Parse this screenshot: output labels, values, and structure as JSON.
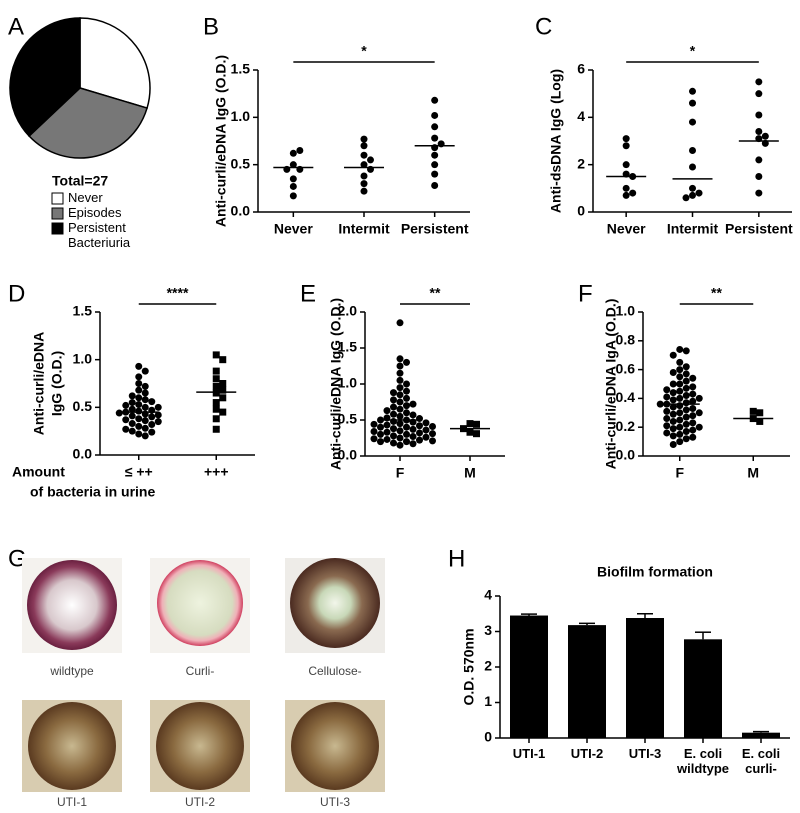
{
  "chart_data": [
    {
      "type": "pie",
      "panel": "A",
      "title": "Total=27",
      "categories": [
        "Never",
        "Episodes",
        "Persistent Bacteriuria"
      ],
      "values": [
        8,
        9,
        10
      ],
      "colors": [
        "#ffffff",
        "#777777",
        "#000000"
      ]
    },
    {
      "type": "strip",
      "panel": "B",
      "ylabel": "Anti-curli/eDNA IgG (O.D.)",
      "categories": [
        "Never",
        "Intermit",
        "Persistent"
      ],
      "values": [
        [
          0.62,
          0.65,
          0.5,
          0.45,
          0.45,
          0.35,
          0.27,
          0.17
        ],
        [
          0.77,
          0.7,
          0.6,
          0.55,
          0.5,
          0.45,
          0.38,
          0.3,
          0.22
        ],
        [
          1.18,
          1.02,
          0.9,
          0.78,
          0.72,
          0.68,
          0.6,
          0.5,
          0.4,
          0.28
        ]
      ],
      "medians": [
        0.47,
        0.47,
        0.7
      ],
      "markers": [
        "circle",
        "circle",
        "circle"
      ],
      "significance": "*",
      "ylim": [
        0,
        1.5
      ],
      "yticks": [
        {
          "value": 0,
          "label": "0.0"
        },
        0.5,
        {
          "value": 1,
          "label": "1.0"
        },
        1.5
      ]
    },
    {
      "type": "strip",
      "panel": "C",
      "ylabel": "Anti-dsDNA IgG (Log)",
      "categories": [
        "Never",
        "Intermit",
        "Persistent"
      ],
      "values": [
        [
          3.1,
          2.8,
          2.0,
          1.6,
          1.5,
          1.0,
          0.8,
          0.7
        ],
        [
          5.1,
          4.6,
          3.8,
          2.6,
          1.9,
          1.0,
          0.8,
          0.7,
          0.6
        ],
        [
          5.5,
          5.0,
          4.1,
          3.4,
          3.2,
          3.1,
          2.9,
          2.2,
          1.5,
          0.8
        ]
      ],
      "medians": [
        1.5,
        1.4,
        3.0
      ],
      "markers": [
        "circle",
        "circle",
        "circle"
      ],
      "significance": "*",
      "ylim": [
        0,
        6
      ],
      "yticks": [
        0,
        2,
        4,
        6
      ]
    },
    {
      "type": "strip",
      "panel": "D",
      "ylabel": [
        "Anti-curli/eDNA",
        "IgG (O.D.)"
      ],
      "xlabel": [
        "Amount",
        "of bacteria in urine"
      ],
      "categories": [
        "≤ ++",
        "+++"
      ],
      "values": [
        [
          0.93,
          0.88,
          0.82,
          0.75,
          0.72,
          0.68,
          0.65,
          0.62,
          0.6,
          0.58,
          0.56,
          0.55,
          0.53,
          0.52,
          0.5,
          0.5,
          0.48,
          0.47,
          0.46,
          0.45,
          0.44,
          0.43,
          0.42,
          0.41,
          0.4,
          0.38,
          0.37,
          0.36,
          0.35,
          0.33,
          0.32,
          0.3,
          0.28,
          0.27,
          0.25,
          0.24,
          0.22,
          0.2
        ],
        [
          1.05,
          1.0,
          0.88,
          0.8,
          0.75,
          0.72,
          0.68,
          0.65,
          0.6,
          0.55,
          0.48,
          0.45,
          0.38,
          0.27
        ]
      ],
      "medians": [
        0.45,
        0.66
      ],
      "markers": [
        "circle",
        "square"
      ],
      "significance": "****",
      "ylim": [
        0,
        1.5
      ],
      "yticks": [
        {
          "value": 0,
          "label": "0.0"
        },
        0.5,
        {
          "value": 1,
          "label": "1.0"
        },
        1.5
      ]
    },
    {
      "type": "strip",
      "panel": "E",
      "ylabel": "Anti-curli/eDNA IgG (O.D.)",
      "categories": [
        "F",
        "M"
      ],
      "values": [
        [
          1.85,
          1.35,
          1.3,
          1.25,
          1.15,
          1.05,
          1.0,
          0.95,
          0.9,
          0.88,
          0.85,
          0.8,
          0.78,
          0.75,
          0.72,
          0.7,
          0.68,
          0.65,
          0.63,
          0.6,
          0.58,
          0.57,
          0.55,
          0.53,
          0.52,
          0.5,
          0.5,
          0.48,
          0.47,
          0.46,
          0.45,
          0.44,
          0.43,
          0.42,
          0.41,
          0.4,
          0.4,
          0.38,
          0.37,
          0.36,
          0.35,
          0.34,
          0.33,
          0.32,
          0.31,
          0.3,
          0.3,
          0.28,
          0.27,
          0.26,
          0.25,
          0.24,
          0.23,
          0.22,
          0.21,
          0.2,
          0.2,
          0.18,
          0.17,
          0.15
        ],
        [
          0.45,
          0.44,
          0.38,
          0.33,
          0.31
        ]
      ],
      "medians": [
        0.5,
        0.38
      ],
      "markers": [
        "circle",
        "square"
      ],
      "significance": "**",
      "ylim": [
        0,
        2
      ],
      "yticks": [
        {
          "value": 0,
          "label": "0.0"
        },
        0.5,
        {
          "value": 1,
          "label": "1.0"
        },
        1.5,
        {
          "value": 2,
          "label": "2.0"
        }
      ]
    },
    {
      "type": "strip",
      "panel": "F",
      "ylabel": "Anti-curli/eDNA IgA (O.D.)",
      "categories": [
        "F",
        "M"
      ],
      "values": [
        [
          0.74,
          0.73,
          0.7,
          0.65,
          0.62,
          0.6,
          0.58,
          0.57,
          0.55,
          0.54,
          0.52,
          0.5,
          0.5,
          0.48,
          0.47,
          0.46,
          0.45,
          0.44,
          0.43,
          0.42,
          0.41,
          0.4,
          0.4,
          0.39,
          0.38,
          0.37,
          0.36,
          0.36,
          0.35,
          0.34,
          0.33,
          0.32,
          0.31,
          0.3,
          0.3,
          0.29,
          0.28,
          0.27,
          0.26,
          0.25,
          0.24,
          0.23,
          0.22,
          0.21,
          0.2,
          0.2,
          0.19,
          0.18,
          0.17,
          0.16,
          0.15,
          0.14,
          0.13,
          0.12,
          0.1,
          0.08
        ],
        [
          0.31,
          0.3,
          0.26,
          0.24
        ]
      ],
      "medians": [
        0.36,
        0.26
      ],
      "markers": [
        "circle",
        "square"
      ],
      "significance": "**",
      "ylim": [
        0,
        1
      ],
      "yticks": [
        {
          "value": 0,
          "label": "0.0"
        },
        0.2,
        0.4,
        0.6,
        0.8,
        {
          "value": 1,
          "label": "1.0"
        }
      ]
    },
    {
      "type": "bar",
      "panel": "H",
      "title": "Biofilm formation",
      "ylabel": "O.D. 570nm",
      "categories": [
        "UTI-1",
        "UTI-2",
        "UTI-3",
        "E. coli wildtype",
        "E. coli curli-"
      ],
      "values": [
        3.45,
        3.18,
        3.38,
        2.78,
        0.15
      ],
      "errors": [
        0.04,
        0.05,
        0.12,
        0.2,
        0.03
      ],
      "color": "#000000",
      "ylim": [
        0,
        4
      ],
      "yticks": [
        0,
        1,
        2,
        3,
        4
      ]
    }
  ],
  "images": {
    "panel": "G",
    "labels": [
      "wildtype",
      "Curli-",
      "Cellulose-",
      "UTI-1",
      "UTI-2",
      "UTI-3"
    ]
  }
}
